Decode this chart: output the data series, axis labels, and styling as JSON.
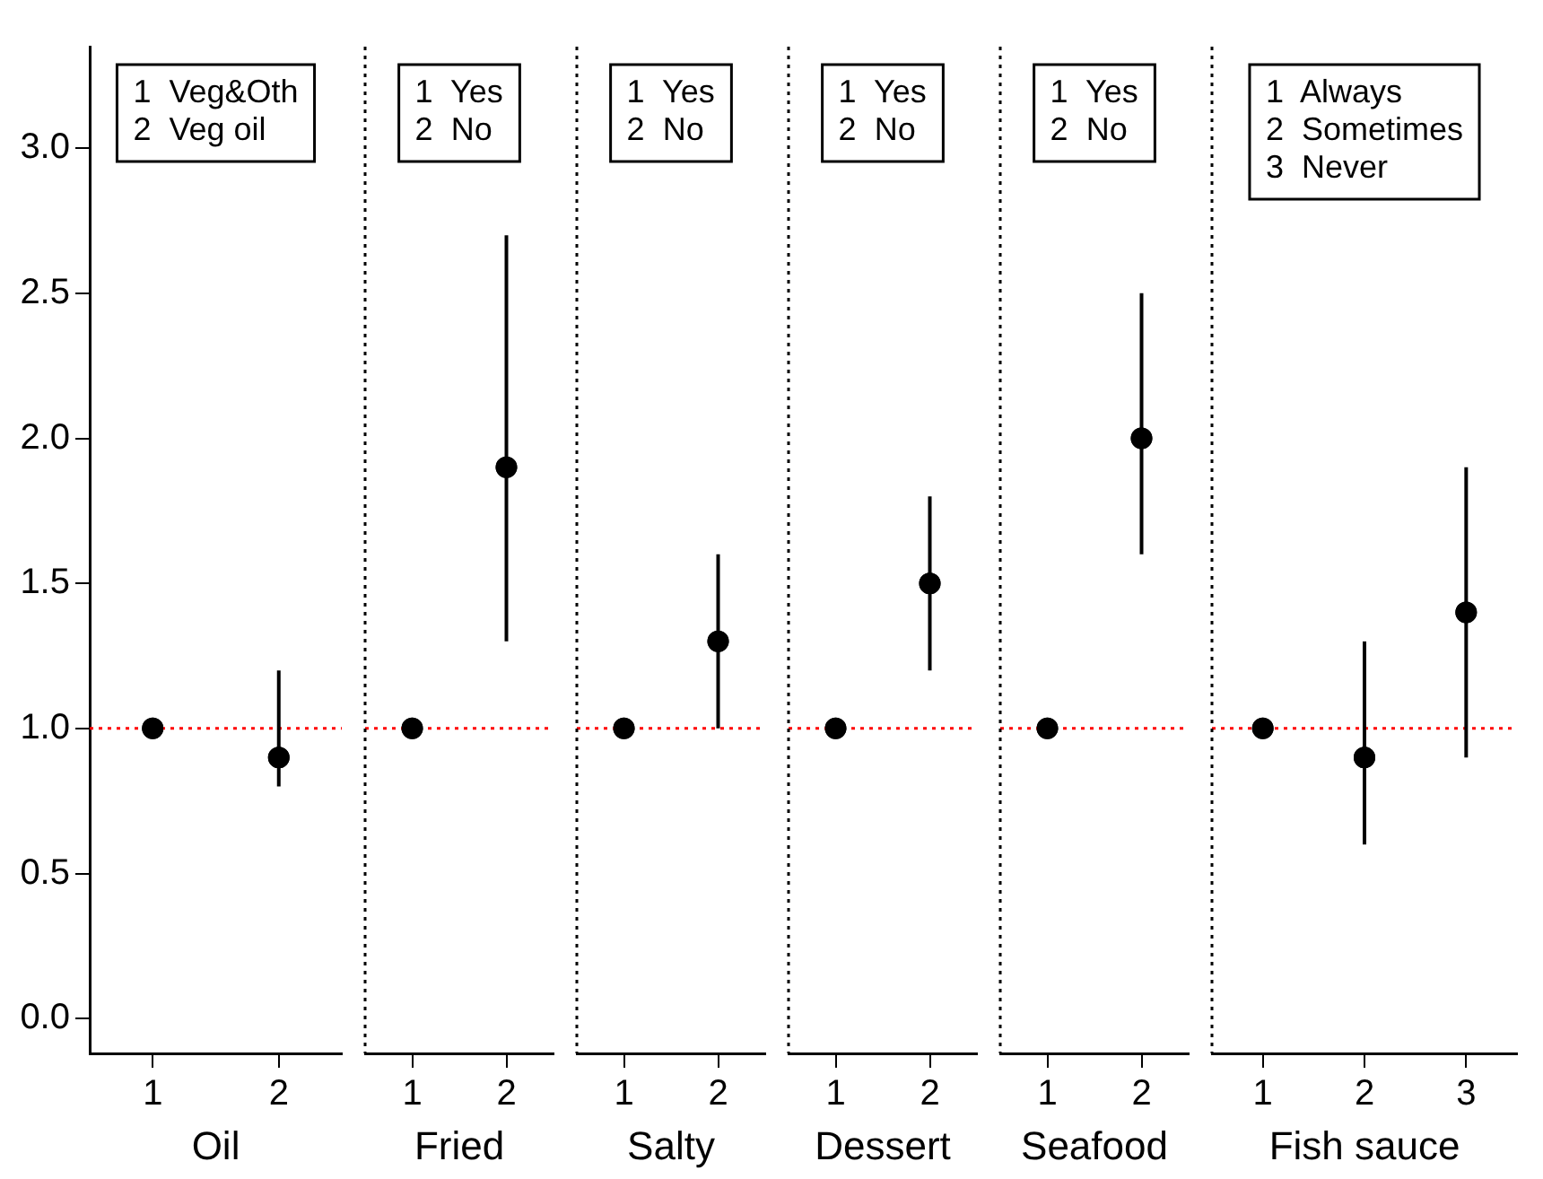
{
  "chart_data": [
    {
      "type": "scatter",
      "categories": [
        "1",
        "2"
      ],
      "values": [
        1.0,
        0.9
      ],
      "errors": [
        null,
        [
          0.8,
          1.2
        ]
      ],
      "color": "#000000",
      "marker": "circle",
      "grid": false,
      "xlabel": "Oil",
      "ylim": [
        -0.12,
        3.35
      ],
      "yticks": [
        {
          "value": 0,
          "label": "0.0"
        },
        {
          "value": 0.5,
          "label": "0.5"
        },
        {
          "value": 1,
          "label": "1.0"
        },
        {
          "value": 1.5,
          "label": "1.5"
        },
        {
          "value": 2,
          "label": "2.0"
        },
        {
          "value": 2.5,
          "label": "2.5"
        },
        {
          "value": 3,
          "label": "3.0"
        }
      ],
      "ref_lines": [
        {
          "axis": "y",
          "value": 1,
          "color": "#ff0000",
          "line_style": "dotted"
        }
      ],
      "annotations": [
        "1  Veg&Oth\n2  Veg oil"
      ]
    },
    {
      "type": "scatter",
      "categories": [
        "1",
        "2"
      ],
      "values": [
        1.0,
        1.9
      ],
      "errors": [
        null,
        [
          1.3,
          2.7
        ]
      ],
      "color": "#000000",
      "marker": "circle",
      "grid": false,
      "xlabel": "Fried",
      "ylim": [
        -0.12,
        3.35
      ],
      "tick_labels": "x",
      "ref_lines": [
        {
          "axis": "y",
          "value": 1,
          "color": "#ff0000",
          "line_style": "dotted"
        }
      ],
      "annotations": [
        "1  Yes\n2  No"
      ]
    },
    {
      "type": "scatter",
      "categories": [
        "1",
        "2"
      ],
      "values": [
        1.0,
        1.3
      ],
      "errors": [
        null,
        [
          1.0,
          1.6
        ]
      ],
      "color": "#000000",
      "marker": "circle",
      "grid": false,
      "xlabel": "Salty",
      "ylim": [
        -0.12,
        3.35
      ],
      "tick_labels": "x",
      "ref_lines": [
        {
          "axis": "y",
          "value": 1,
          "color": "#ff0000",
          "line_style": "dotted"
        }
      ],
      "annotations": [
        "1  Yes\n2  No"
      ]
    },
    {
      "type": "scatter",
      "categories": [
        "1",
        "2"
      ],
      "values": [
        1.0,
        1.5
      ],
      "errors": [
        null,
        [
          1.2,
          1.8
        ]
      ],
      "color": "#000000",
      "marker": "circle",
      "grid": false,
      "xlabel": "Dessert",
      "ylim": [
        -0.12,
        3.35
      ],
      "tick_labels": "x",
      "ref_lines": [
        {
          "axis": "y",
          "value": 1,
          "color": "#ff0000",
          "line_style": "dotted"
        }
      ],
      "annotations": [
        "1  Yes\n2  No"
      ]
    },
    {
      "type": "scatter",
      "categories": [
        "1",
        "2"
      ],
      "values": [
        1.0,
        2.0
      ],
      "errors": [
        null,
        [
          1.6,
          2.5
        ]
      ],
      "color": "#000000",
      "marker": "circle",
      "grid": false,
      "xlabel": "Seafood",
      "ylim": [
        -0.12,
        3.35
      ],
      "tick_labels": "x",
      "ref_lines": [
        {
          "axis": "y",
          "value": 1,
          "color": "#ff0000",
          "line_style": "dotted"
        }
      ],
      "annotations": [
        "1  Yes\n2  No"
      ]
    },
    {
      "type": "scatter",
      "categories": [
        "1",
        "2",
        "3"
      ],
      "values": [
        1.0,
        0.9,
        1.4
      ],
      "errors": [
        null,
        [
          0.6,
          1.3
        ],
        [
          0.9,
          1.9
        ]
      ],
      "color": "#000000",
      "marker": "circle",
      "grid": false,
      "xlabel": "Fish sauce",
      "ylim": [
        -0.12,
        3.35
      ],
      "tick_labels": "x",
      "ref_lines": [
        {
          "axis": "y",
          "value": 1,
          "color": "#ff0000",
          "line_style": "dotted"
        }
      ],
      "annotations": [
        "1  Always\n2  Sometimes\n3  Never"
      ]
    }
  ]
}
